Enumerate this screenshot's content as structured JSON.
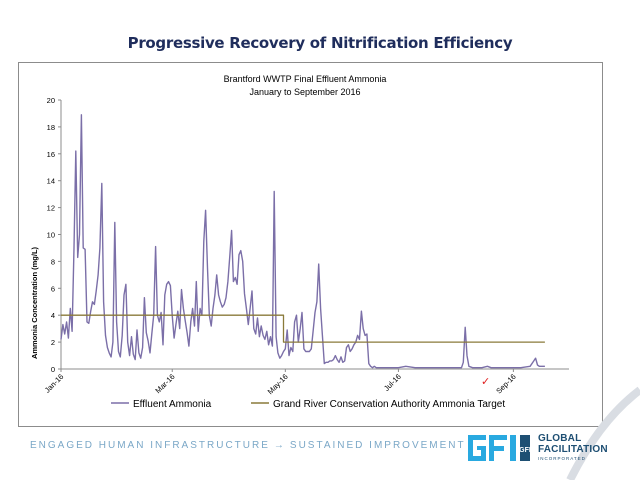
{
  "slide": {
    "title": "Progressive Recovery of Nitrification Efficiency",
    "footer_left": "ENGAGED HUMAN INFRASTRUCTURE",
    "footer_arrow": "→",
    "footer_right": "SUSTAINED IMPROVEMENT",
    "logo_line1": "GLOBAL",
    "logo_line2": "FACILITATION",
    "logo_line3": "INCORPORATED",
    "logo_mark": "GFI",
    "colors": {
      "title": "#1f2d5c",
      "footer": "#7aa7c7",
      "logo": "#1e4f73",
      "logo_accent": "#29a9e0"
    }
  },
  "chart_data": {
    "type": "line",
    "title": "Brantford WWTP Final Effluent Ammonia",
    "subtitle": "January to September 2016",
    "xlabel": "",
    "ylabel": "Ammonia Concentration (mg/L)",
    "ylim": [
      0,
      20
    ],
    "yticks": [
      0,
      2,
      4,
      6,
      8,
      10,
      12,
      14,
      16,
      18,
      20
    ],
    "xlim": [
      "2016-01-01",
      "2016-10-01"
    ],
    "xticks": [
      {
        "label": "Jan-16",
        "date": "2016-01-01"
      },
      {
        "label": "Mar-16",
        "date": "2016-03-01"
      },
      {
        "label": "May-16",
        "date": "2016-05-01"
      },
      {
        "label": "Jul-16",
        "date": "2016-07-01"
      },
      {
        "label": "Sep-16",
        "date": "2016-09-01"
      }
    ],
    "grid": false,
    "legend_position": "bottom",
    "series": [
      {
        "name": "Effluent Ammonia",
        "color": "#7b6fa8",
        "points": [
          [
            "2016-01-01",
            2.2
          ],
          [
            "2016-01-02",
            3.3
          ],
          [
            "2016-01-03",
            2.6
          ],
          [
            "2016-01-04",
            3.5
          ],
          [
            "2016-01-05",
            2.3
          ],
          [
            "2016-01-06",
            4.5
          ],
          [
            "2016-01-07",
            2.8
          ],
          [
            "2016-01-08",
            9.0
          ],
          [
            "2016-01-09",
            16.2
          ],
          [
            "2016-01-10",
            8.3
          ],
          [
            "2016-01-11",
            10.0
          ],
          [
            "2016-01-12",
            18.9
          ],
          [
            "2016-01-13",
            9.0
          ],
          [
            "2016-01-14",
            8.9
          ],
          [
            "2016-01-15",
            3.5
          ],
          [
            "2016-01-16",
            3.4
          ],
          [
            "2016-01-17",
            4.3
          ],
          [
            "2016-01-18",
            5.0
          ],
          [
            "2016-01-19",
            4.8
          ],
          [
            "2016-01-20",
            5.8
          ],
          [
            "2016-01-21",
            7.0
          ],
          [
            "2016-01-22",
            9.0
          ],
          [
            "2016-01-23",
            13.8
          ],
          [
            "2016-01-24",
            5.0
          ],
          [
            "2016-01-25",
            2.5
          ],
          [
            "2016-01-26",
            1.6
          ],
          [
            "2016-01-27",
            1.2
          ],
          [
            "2016-01-28",
            0.9
          ],
          [
            "2016-01-29",
            2.0
          ],
          [
            "2016-01-30",
            10.9
          ],
          [
            "2016-01-31",
            3.5
          ],
          [
            "2016-02-01",
            1.3
          ],
          [
            "2016-02-02",
            0.9
          ],
          [
            "2016-02-03",
            2.5
          ],
          [
            "2016-02-04",
            5.5
          ],
          [
            "2016-02-05",
            6.3
          ],
          [
            "2016-02-06",
            2.0
          ],
          [
            "2016-02-07",
            1.0
          ],
          [
            "2016-02-08",
            2.4
          ],
          [
            "2016-02-09",
            1.1
          ],
          [
            "2016-02-10",
            0.7
          ],
          [
            "2016-02-11",
            2.9
          ],
          [
            "2016-02-12",
            1.2
          ],
          [
            "2016-02-13",
            0.8
          ],
          [
            "2016-02-14",
            1.6
          ],
          [
            "2016-02-15",
            5.3
          ],
          [
            "2016-02-16",
            2.7
          ],
          [
            "2016-02-17",
            2.1
          ],
          [
            "2016-02-18",
            1.2
          ],
          [
            "2016-02-19",
            2.6
          ],
          [
            "2016-02-20",
            4.0
          ],
          [
            "2016-02-21",
            9.1
          ],
          [
            "2016-02-22",
            4.0
          ],
          [
            "2016-02-23",
            3.5
          ],
          [
            "2016-02-24",
            4.2
          ],
          [
            "2016-02-25",
            1.8
          ],
          [
            "2016-02-26",
            5.5
          ],
          [
            "2016-02-27",
            6.3
          ],
          [
            "2016-02-28",
            6.5
          ],
          [
            "2016-02-29",
            6.2
          ],
          [
            "2016-03-01",
            4.0
          ],
          [
            "2016-03-02",
            2.3
          ],
          [
            "2016-03-03",
            3.3
          ],
          [
            "2016-03-04",
            4.3
          ],
          [
            "2016-03-05",
            3.0
          ],
          [
            "2016-03-06",
            5.9
          ],
          [
            "2016-03-07",
            4.5
          ],
          [
            "2016-03-08",
            3.6
          ],
          [
            "2016-03-09",
            2.7
          ],
          [
            "2016-03-10",
            1.7
          ],
          [
            "2016-03-11",
            3.5
          ],
          [
            "2016-03-12",
            4.5
          ],
          [
            "2016-03-13",
            3.2
          ],
          [
            "2016-03-14",
            6.5
          ],
          [
            "2016-03-15",
            2.8
          ],
          [
            "2016-03-16",
            4.5
          ],
          [
            "2016-03-17",
            4.0
          ],
          [
            "2016-03-18",
            9.5
          ],
          [
            "2016-03-19",
            11.8
          ],
          [
            "2016-03-20",
            7.5
          ],
          [
            "2016-03-21",
            4.0
          ],
          [
            "2016-03-22",
            3.2
          ],
          [
            "2016-03-23",
            4.5
          ],
          [
            "2016-03-24",
            5.5
          ],
          [
            "2016-03-25",
            7.0
          ],
          [
            "2016-03-26",
            5.5
          ],
          [
            "2016-03-27",
            5.0
          ],
          [
            "2016-03-28",
            4.6
          ],
          [
            "2016-03-29",
            4.8
          ],
          [
            "2016-03-30",
            5.3
          ],
          [
            "2016-03-31",
            6.5
          ],
          [
            "2016-04-01",
            8.3
          ],
          [
            "2016-04-02",
            10.3
          ],
          [
            "2016-04-03",
            6.5
          ],
          [
            "2016-04-04",
            6.8
          ],
          [
            "2016-04-05",
            6.3
          ],
          [
            "2016-04-06",
            8.5
          ],
          [
            "2016-04-07",
            8.8
          ],
          [
            "2016-04-08",
            8.0
          ],
          [
            "2016-04-09",
            5.6
          ],
          [
            "2016-04-10",
            4.5
          ],
          [
            "2016-04-11",
            3.3
          ],
          [
            "2016-04-12",
            4.5
          ],
          [
            "2016-04-13",
            5.8
          ],
          [
            "2016-04-14",
            3.0
          ],
          [
            "2016-04-15",
            2.6
          ],
          [
            "2016-04-16",
            3.8
          ],
          [
            "2016-04-17",
            2.4
          ],
          [
            "2016-04-18",
            3.2
          ],
          [
            "2016-04-19",
            2.5
          ],
          [
            "2016-04-20",
            2.2
          ],
          [
            "2016-04-21",
            2.8
          ],
          [
            "2016-04-22",
            1.8
          ],
          [
            "2016-04-23",
            2.4
          ],
          [
            "2016-04-24",
            1.7
          ],
          [
            "2016-04-25",
            13.2
          ],
          [
            "2016-04-26",
            2.4
          ],
          [
            "2016-04-27",
            1.2
          ],
          [
            "2016-04-28",
            0.8
          ],
          [
            "2016-04-29",
            1.0
          ],
          [
            "2016-04-30",
            1.3
          ],
          [
            "2016-05-01",
            1.5
          ],
          [
            "2016-05-02",
            2.9
          ],
          [
            "2016-05-03",
            1.0
          ],
          [
            "2016-05-04",
            1.6
          ],
          [
            "2016-05-05",
            1.3
          ],
          [
            "2016-05-06",
            3.5
          ],
          [
            "2016-05-07",
            4.0
          ],
          [
            "2016-05-08",
            2.0
          ],
          [
            "2016-05-09",
            3.0
          ],
          [
            "2016-05-10",
            4.2
          ],
          [
            "2016-05-11",
            1.5
          ],
          [
            "2016-05-12",
            1.3
          ],
          [
            "2016-05-13",
            1.3
          ],
          [
            "2016-05-14",
            1.3
          ],
          [
            "2016-05-15",
            1.5
          ],
          [
            "2016-05-16",
            2.8
          ],
          [
            "2016-05-17",
            4.2
          ],
          [
            "2016-05-18",
            5.0
          ],
          [
            "2016-05-19",
            7.8
          ],
          [
            "2016-05-20",
            4.5
          ],
          [
            "2016-05-21",
            2.5
          ],
          [
            "2016-05-22",
            0.4
          ],
          [
            "2016-05-23",
            0.5
          ],
          [
            "2016-05-24",
            0.5
          ],
          [
            "2016-05-25",
            0.6
          ],
          [
            "2016-05-26",
            0.6
          ],
          [
            "2016-05-27",
            0.7
          ],
          [
            "2016-05-28",
            1.0
          ],
          [
            "2016-05-29",
            0.7
          ],
          [
            "2016-05-30",
            0.5
          ],
          [
            "2016-05-31",
            0.9
          ],
          [
            "2016-06-01",
            0.5
          ],
          [
            "2016-06-02",
            0.6
          ],
          [
            "2016-06-03",
            1.6
          ],
          [
            "2016-06-04",
            1.8
          ],
          [
            "2016-06-05",
            1.3
          ],
          [
            "2016-06-06",
            1.5
          ],
          [
            "2016-06-07",
            1.8
          ],
          [
            "2016-06-08",
            2.0
          ],
          [
            "2016-06-09",
            2.5
          ],
          [
            "2016-06-10",
            2.2
          ],
          [
            "2016-06-11",
            4.3
          ],
          [
            "2016-06-12",
            3.0
          ],
          [
            "2016-06-13",
            2.5
          ],
          [
            "2016-06-14",
            2.6
          ],
          [
            "2016-06-15",
            0.4
          ],
          [
            "2016-06-16",
            0.2
          ],
          [
            "2016-06-17",
            0.1
          ],
          [
            "2016-06-18",
            0.2
          ],
          [
            "2016-06-19",
            0.1
          ],
          [
            "2016-06-20",
            0.1
          ],
          [
            "2016-06-25",
            0.1
          ],
          [
            "2016-07-01",
            0.1
          ],
          [
            "2016-07-05",
            0.2
          ],
          [
            "2016-07-10",
            0.1
          ],
          [
            "2016-07-15",
            0.1
          ],
          [
            "2016-07-20",
            0.1
          ],
          [
            "2016-07-25",
            0.1
          ],
          [
            "2016-07-30",
            0.1
          ],
          [
            "2016-08-04",
            0.1
          ],
          [
            "2016-08-05",
            0.5
          ],
          [
            "2016-08-06",
            3.1
          ],
          [
            "2016-08-07",
            1.0
          ],
          [
            "2016-08-08",
            0.2
          ],
          [
            "2016-08-10",
            0.1
          ],
          [
            "2016-08-15",
            0.1
          ],
          [
            "2016-08-18",
            0.2
          ],
          [
            "2016-08-20",
            0.1
          ],
          [
            "2016-08-25",
            0.1
          ],
          [
            "2016-08-30",
            0.1
          ],
          [
            "2016-09-05",
            0.1
          ],
          [
            "2016-09-10",
            0.2
          ],
          [
            "2016-09-12",
            0.6
          ],
          [
            "2016-09-13",
            0.8
          ],
          [
            "2016-09-14",
            0.3
          ],
          [
            "2016-09-15",
            0.2
          ],
          [
            "2016-09-16",
            0.2
          ],
          [
            "2016-09-18",
            0.2
          ]
        ]
      },
      {
        "name": "Grand River Conservation Authority Ammonia Target",
        "color": "#8a7a3a",
        "points": [
          [
            "2016-01-01",
            4.0
          ],
          [
            "2016-04-30",
            4.0
          ],
          [
            "2016-04-30",
            2.0
          ],
          [
            "2016-09-18",
            2.0
          ]
        ]
      }
    ],
    "annotations": [
      {
        "text": "✓",
        "date": "2016-08-17",
        "y": -0.9,
        "color": "#e02020"
      }
    ]
  }
}
